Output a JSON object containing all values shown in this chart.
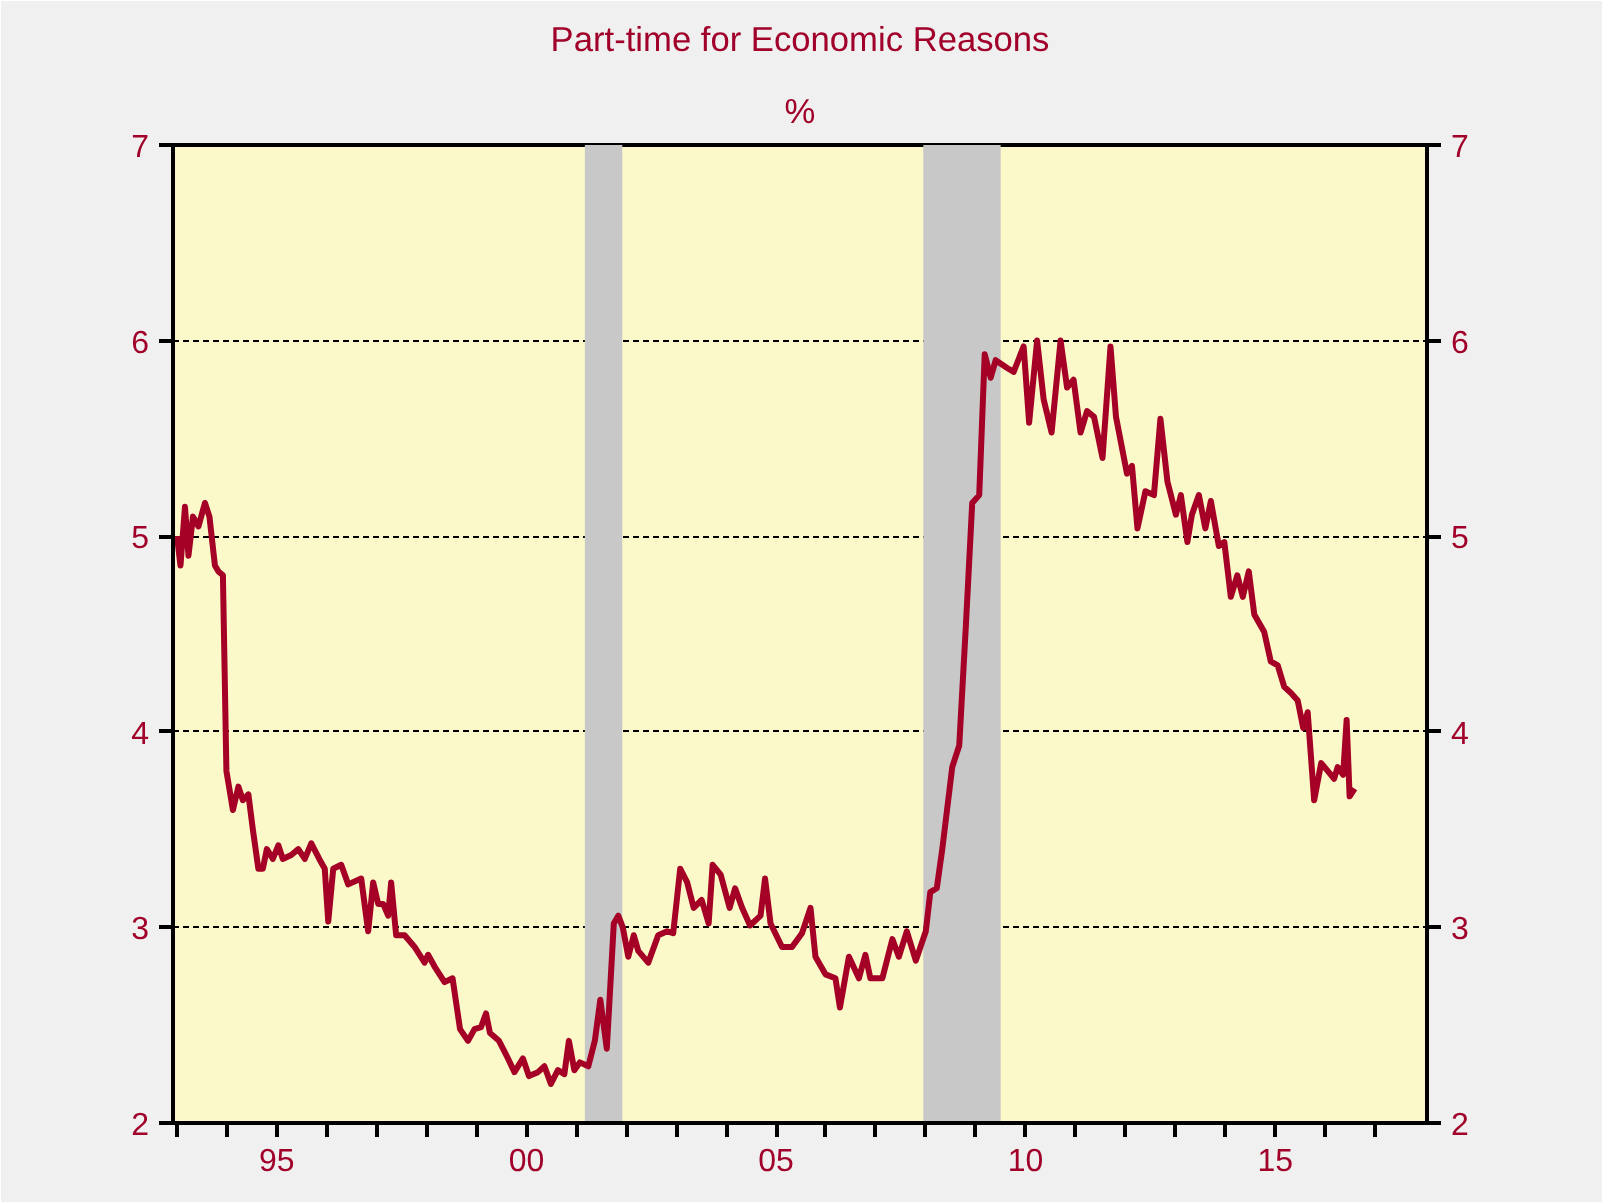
{
  "chart_data": {
    "type": "line",
    "title": "Part-time for Economic Reasons",
    "subtitle": "%",
    "xlim": [
      1992.92,
      2018.04
    ],
    "xticks": [
      {
        "value": 1993,
        "label": null
      },
      {
        "value": 1994,
        "label": null
      },
      {
        "value": 1995,
        "label": "95"
      },
      {
        "value": 1996,
        "label": null
      },
      {
        "value": 1997,
        "label": null
      },
      {
        "value": 1998,
        "label": null
      },
      {
        "value": 1999,
        "label": null
      },
      {
        "value": 2000,
        "label": "00"
      },
      {
        "value": 2001,
        "label": null
      },
      {
        "value": 2002,
        "label": null
      },
      {
        "value": 2003,
        "label": null
      },
      {
        "value": 2004,
        "label": null
      },
      {
        "value": 2005,
        "label": "05"
      },
      {
        "value": 2006,
        "label": null
      },
      {
        "value": 2007,
        "label": null
      },
      {
        "value": 2008,
        "label": null
      },
      {
        "value": 2009,
        "label": null
      },
      {
        "value": 2010,
        "label": "10"
      },
      {
        "value": 2011,
        "label": null
      },
      {
        "value": 2012,
        "label": null
      },
      {
        "value": 2013,
        "label": null
      },
      {
        "value": 2014,
        "label": null
      },
      {
        "value": 2015,
        "label": "15"
      },
      {
        "value": 2016,
        "label": null
      },
      {
        "value": 2017,
        "label": null
      }
    ],
    "ylim": [
      2,
      7
    ],
    "yticks": [
      2,
      3,
      4,
      5,
      6,
      7
    ],
    "y2lim": [
      2,
      7
    ],
    "y2ticks": [
      2,
      3,
      4,
      5,
      6,
      7
    ],
    "grid": "y",
    "line_style": "solid",
    "bands": [
      {
        "axis": "x",
        "from": 2001.17,
        "to": 2001.92,
        "color": "#c8c8c8"
      },
      {
        "axis": "x",
        "from": 2007.95,
        "to": 2009.5,
        "color": "#c8c8c8"
      }
    ],
    "series": [
      {
        "color": "#a50026",
        "x": [
          1993.0,
          1993.07,
          1993.16,
          1993.23,
          1993.32,
          1993.43,
          1993.56,
          1993.65,
          1993.76,
          1993.83,
          1993.92,
          1993.99,
          1994.12,
          1994.23,
          1994.32,
          1994.43,
          1994.52,
          1994.63,
          1994.72,
          1994.8,
          1994.92,
          1995.03,
          1995.12,
          1995.29,
          1995.43,
          1995.56,
          1995.69,
          1995.85,
          1995.96,
          1996.03,
          1996.13,
          1996.29,
          1996.43,
          1996.69,
          1996.83,
          1996.93,
          1997.03,
          1997.13,
          1997.23,
          1997.29,
          1997.39,
          1997.56,
          1997.76,
          1997.96,
          1998.03,
          1998.16,
          1998.36,
          1998.52,
          1998.67,
          1998.83,
          1998.96,
          1999.09,
          1999.19,
          1999.27,
          1999.45,
          1999.63,
          1999.76,
          1999.93,
          2000.05,
          2000.23,
          2000.36,
          2000.49,
          2000.63,
          2000.76,
          2000.85,
          2000.96,
          2001.07,
          2001.24,
          2001.37,
          2001.48,
          2001.61,
          2001.75,
          2001.84,
          2001.93,
          2002.04,
          2002.15,
          2002.24,
          2002.44,
          2002.64,
          2002.82,
          2002.94,
          2003.08,
          2003.22,
          2003.35,
          2003.51,
          2003.65,
          2003.73,
          2003.89,
          2004.07,
          2004.18,
          2004.32,
          2004.48,
          2004.69,
          2004.78,
          2004.89,
          2005.12,
          2005.32,
          2005.52,
          2005.69,
          2005.79,
          2005.99,
          2006.19,
          2006.28,
          2006.46,
          2006.66,
          2006.79,
          2006.89,
          2007.13,
          2007.33,
          2007.46,
          2007.62,
          2007.8,
          2008.0,
          2008.09,
          2008.22,
          2008.33,
          2008.53,
          2008.67,
          2008.8,
          2008.93,
          2009.07,
          2009.18,
          2009.3,
          2009.4,
          2009.63,
          2009.76,
          2009.96,
          2010.07,
          2010.23,
          2010.36,
          2010.52,
          2010.7,
          2010.83,
          2010.96,
          2011.1,
          2011.23,
          2011.37,
          2011.54,
          2011.7,
          2011.81,
          2012.03,
          2012.13,
          2012.24,
          2012.4,
          2012.57,
          2012.7,
          2012.84,
          2013.01,
          2013.11,
          2013.24,
          2013.33,
          2013.47,
          2013.6,
          2013.71,
          2013.87,
          2013.98,
          2014.11,
          2014.24,
          2014.35,
          2014.47,
          2014.58,
          2014.78,
          2014.91,
          2015.05,
          2015.18,
          2015.31,
          2015.45,
          2015.56,
          2015.65,
          2015.78,
          2015.92,
          2016.05,
          2016.18,
          2016.25,
          2016.36,
          2016.43,
          2016.49,
          2016.59
        ],
        "values": [
          5.0,
          4.85,
          5.15,
          4.9,
          5.1,
          5.05,
          5.17,
          5.1,
          4.85,
          4.82,
          4.8,
          3.8,
          3.6,
          3.72,
          3.65,
          3.68,
          3.5,
          3.3,
          3.3,
          3.4,
          3.35,
          3.42,
          3.35,
          3.37,
          3.4,
          3.35,
          3.43,
          3.35,
          3.3,
          3.03,
          3.3,
          3.32,
          3.22,
          3.25,
          2.98,
          3.23,
          3.12,
          3.12,
          3.06,
          3.23,
          2.96,
          2.96,
          2.9,
          2.82,
          2.86,
          2.8,
          2.72,
          2.74,
          2.48,
          2.42,
          2.48,
          2.49,
          2.56,
          2.46,
          2.42,
          2.33,
          2.26,
          2.33,
          2.24,
          2.26,
          2.29,
          2.2,
          2.27,
          2.25,
          2.42,
          2.27,
          2.31,
          2.29,
          2.42,
          2.63,
          2.38,
          3.02,
          3.06,
          3.0,
          2.85,
          2.96,
          2.88,
          2.82,
          2.96,
          2.98,
          2.97,
          3.3,
          3.23,
          3.1,
          3.14,
          3.02,
          3.32,
          3.27,
          3.1,
          3.2,
          3.1,
          3.01,
          3.06,
          3.25,
          3.02,
          2.9,
          2.9,
          2.97,
          3.1,
          2.85,
          2.76,
          2.74,
          2.59,
          2.85,
          2.74,
          2.86,
          2.74,
          2.74,
          2.94,
          2.85,
          2.98,
          2.83,
          2.98,
          3.18,
          3.2,
          3.4,
          3.82,
          3.93,
          4.53,
          5.17,
          5.21,
          5.93,
          5.81,
          5.9,
          5.86,
          5.84,
          5.97,
          5.58,
          6.0,
          5.7,
          5.53,
          6.0,
          5.76,
          5.8,
          5.53,
          5.64,
          5.61,
          5.4,
          5.97,
          5.61,
          5.32,
          5.36,
          5.04,
          5.23,
          5.21,
          5.6,
          5.28,
          5.11,
          5.21,
          4.97,
          5.11,
          5.21,
          5.04,
          5.18,
          4.95,
          4.97,
          4.69,
          4.8,
          4.69,
          4.82,
          4.6,
          4.51,
          4.36,
          4.34,
          4.23,
          4.2,
          4.16,
          4.02,
          4.1,
          3.65,
          3.84,
          3.8,
          3.76,
          3.82,
          3.78,
          4.06,
          3.67,
          3.71
        ]
      }
    ]
  }
}
